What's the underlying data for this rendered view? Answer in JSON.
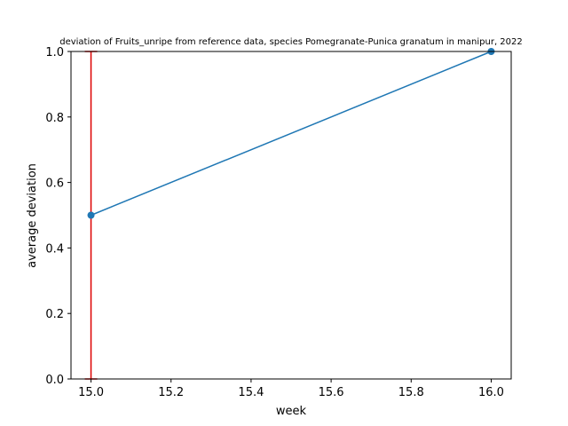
{
  "chart_data": {
    "type": "line",
    "title": "deviation of Fruits_unripe from reference data, species Pomegranate-Punica granatum in manipur, 2022",
    "xlabel": "week",
    "ylabel": "average deviation",
    "xlim": [
      14.95,
      16.05
    ],
    "ylim": [
      0.0,
      1.0
    ],
    "x_ticks": [
      15.0,
      15.2,
      15.4,
      15.6,
      15.8,
      16.0
    ],
    "x_tick_labels": [
      "15.0",
      "15.2",
      "15.4",
      "15.6",
      "15.8",
      "16.0"
    ],
    "y_ticks": [
      0.0,
      0.2,
      0.4,
      0.6,
      0.8,
      1.0
    ],
    "y_tick_labels": [
      "0.0",
      "0.2",
      "0.4",
      "0.6",
      "0.8",
      "1.0"
    ],
    "grid": false,
    "series": [
      {
        "name": "average deviation",
        "x": [
          15,
          16
        ],
        "values": [
          0.5,
          1.0
        ],
        "color": "#1f77b4"
      }
    ],
    "error_bars": [
      {
        "x": 15,
        "y": 0.5,
        "lower": 0.0,
        "upper": 1.0,
        "color": "#dd0000"
      }
    ]
  }
}
